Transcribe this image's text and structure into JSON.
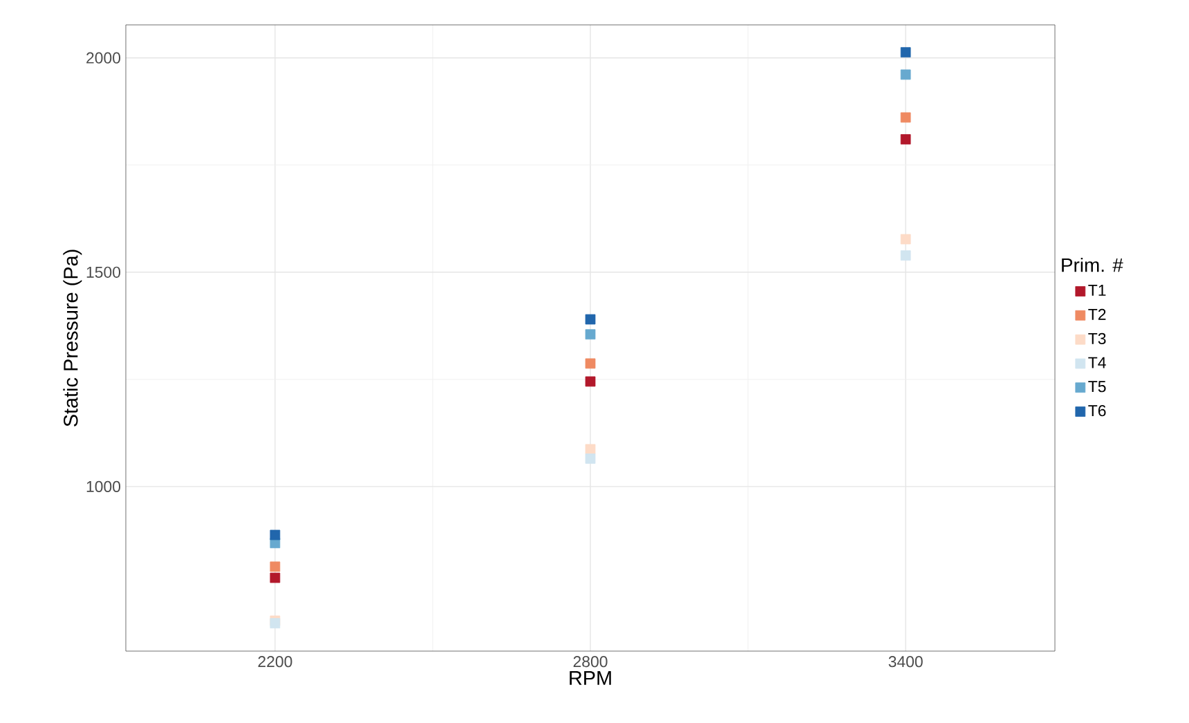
{
  "chart_data": {
    "type": "scatter",
    "xlabel": "RPM",
    "ylabel": "Static Pressure (Pa)",
    "legend_title": "Prim. #",
    "legend": "right",
    "grid": true,
    "marker": "square",
    "x": [
      2200,
      2800,
      3400
    ],
    "xlim": [
      1916,
      3684
    ],
    "xticks": [
      2200,
      2800,
      3400
    ],
    "ylim": [
      616,
      2077
    ],
    "yticks": [
      1000,
      1500,
      2000
    ],
    "series": [
      {
        "name": "T1",
        "color": "#b2182b",
        "values": [
          787,
          1245,
          1810
        ]
      },
      {
        "name": "T2",
        "color": "#ef8a62",
        "values": [
          813,
          1287,
          1861
        ]
      },
      {
        "name": "T3",
        "color": "#fddbc7",
        "values": [
          687,
          1087,
          1577
        ]
      },
      {
        "name": "T4",
        "color": "#d1e5f0",
        "values": [
          681,
          1065,
          1539
        ]
      },
      {
        "name": "T5",
        "color": "#67a9cf",
        "values": [
          868,
          1355,
          1961
        ]
      },
      {
        "name": "T6",
        "color": "#2166ac",
        "values": [
          887,
          1390,
          2013
        ]
      }
    ]
  }
}
